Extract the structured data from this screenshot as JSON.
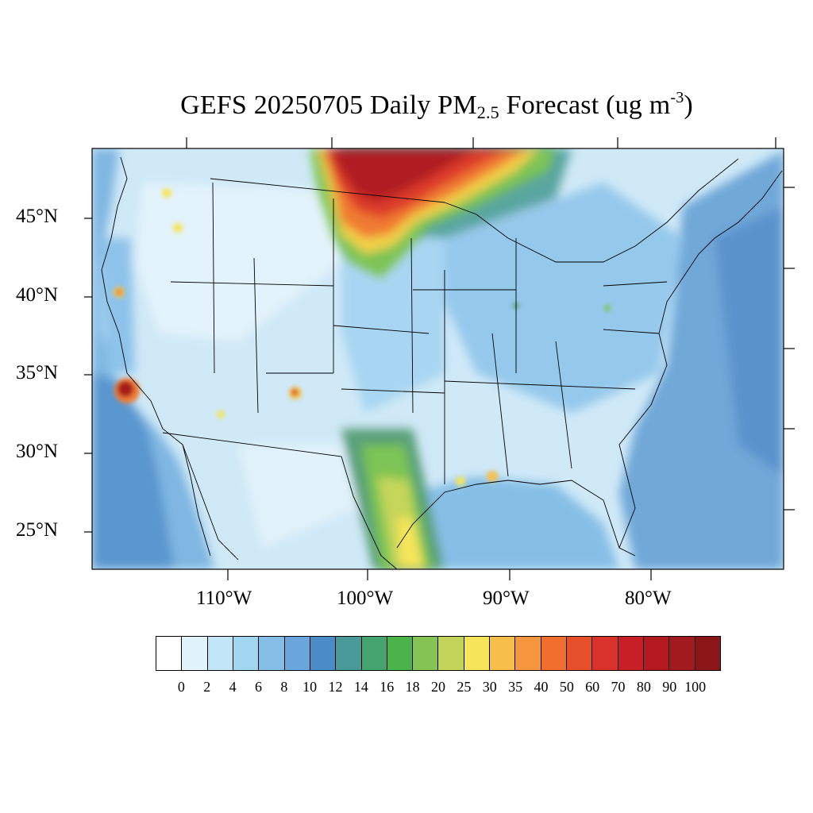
{
  "title": {
    "prefix": "GEFS 20250705 Daily PM",
    "subscript": "2.5",
    "middle": " Forecast (ug m",
    "superscript": "-3",
    "suffix": ")"
  },
  "map": {
    "region": "Continental United States",
    "variable": "Daily PM2.5 Forecast",
    "units": "ug m-3",
    "lat_labels": [
      "45°N",
      "40°N",
      "35°N",
      "30°N",
      "25°N"
    ],
    "lon_labels": [
      "110°W",
      "100°W",
      "90°W",
      "80°W"
    ],
    "colors": {
      "background": "#cfe9f7",
      "ocean": "#6fa8d8",
      "smoke_core": "#a51c1c",
      "border": "#000000"
    },
    "hotspots": [
      {
        "name": "Southern Manitoba / Dakotas smoke plume",
        "level": "70-100"
      },
      {
        "name": "Southern California fire",
        "level": "80-100"
      },
      {
        "name": "New Mexico fire",
        "level": "40-70"
      },
      {
        "name": "South Texas Gulf plume",
        "level": "20-30"
      }
    ]
  },
  "colorbar": {
    "labels": [
      "0",
      "2",
      "4",
      "6",
      "8",
      "10",
      "12",
      "14",
      "16",
      "18",
      "20",
      "25",
      "30",
      "35",
      "40",
      "50",
      "60",
      "70",
      "80",
      "90",
      "100"
    ],
    "colors": [
      "#ffffff",
      "#e0f3fb",
      "#c2e6f7",
      "#a1d6f1",
      "#84bde6",
      "#6aa6dc",
      "#4b8bc7",
      "#4a9999",
      "#45a36e",
      "#4ab34a",
      "#84c454",
      "#c2d45a",
      "#f6e55a",
      "#f7bf4a",
      "#f5963e",
      "#f06e2e",
      "#e5502b",
      "#d9322a",
      "#c81f27",
      "#b3191f",
      "#a11a1d",
      "#8b1618"
    ]
  }
}
